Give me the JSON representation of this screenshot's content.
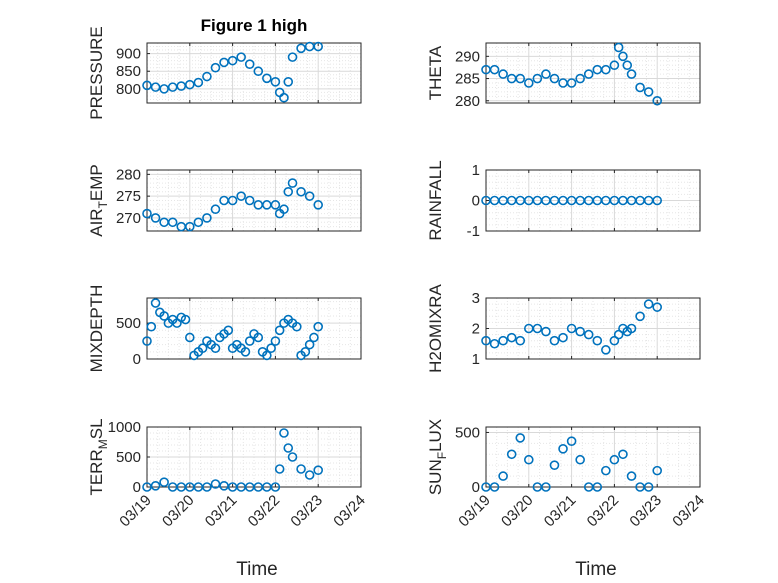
{
  "figure": {
    "title": "Figure 1 high",
    "xlabel": "Time",
    "x_ticks": [
      "03/19",
      "03/20",
      "03/21",
      "03/22",
      "03/23",
      "03/24"
    ],
    "x_range_days": [
      0,
      5
    ],
    "marker_color": "#0072BD"
  },
  "chart_data": [
    {
      "type": "scatter",
      "marker": "circle-open",
      "ylabel": "PRESSURE",
      "ylim": [
        760,
        930
      ],
      "yticks": [
        800,
        850,
        900
      ],
      "grid": true,
      "x": [
        0.0,
        0.2,
        0.4,
        0.6,
        0.8,
        1.0,
        1.2,
        1.4,
        1.6,
        1.8,
        2.0,
        2.2,
        2.4,
        2.6,
        2.8,
        3.0,
        3.1,
        3.2,
        3.3,
        3.4,
        3.6,
        3.8,
        4.0
      ],
      "y": [
        810,
        805,
        800,
        805,
        808,
        812,
        818,
        835,
        860,
        875,
        880,
        890,
        870,
        850,
        830,
        820,
        790,
        775,
        820,
        890,
        915,
        920,
        920
      ]
    },
    {
      "type": "scatter",
      "marker": "circle-open",
      "ylabel": "THETA",
      "ylim": [
        279.5,
        293
      ],
      "yticks": [
        280,
        285,
        290
      ],
      "grid": true,
      "x": [
        0.0,
        0.2,
        0.4,
        0.6,
        0.8,
        1.0,
        1.2,
        1.4,
        1.6,
        1.8,
        2.0,
        2.2,
        2.4,
        2.6,
        2.8,
        3.0,
        3.1,
        3.2,
        3.3,
        3.4,
        3.6,
        3.8,
        4.0
      ],
      "y": [
        287,
        287,
        286,
        285,
        285,
        284,
        285,
        286,
        285,
        284,
        284,
        285,
        286,
        287,
        287,
        288,
        292,
        290,
        288,
        286,
        283,
        282,
        280
      ]
    },
    {
      "type": "scatter",
      "marker": "circle-open",
      "ylabel": "AIR_TEMP",
      "ylabel_sub": "T",
      "ylabel_pre": "AIR",
      "ylabel_post": "EMP",
      "ylim": [
        267,
        281
      ],
      "yticks": [
        270,
        275,
        280
      ],
      "grid": true,
      "x": [
        0.0,
        0.2,
        0.4,
        0.6,
        0.8,
        1.0,
        1.2,
        1.4,
        1.6,
        1.8,
        2.0,
        2.2,
        2.4,
        2.6,
        2.8,
        3.0,
        3.1,
        3.2,
        3.3,
        3.4,
        3.6,
        3.8,
        4.0
      ],
      "y": [
        271,
        270,
        269,
        269,
        268,
        268,
        269,
        270,
        272,
        274,
        274,
        275,
        274,
        273,
        273,
        273,
        271,
        272,
        276,
        278,
        276,
        275,
        273
      ]
    },
    {
      "type": "scatter",
      "marker": "circle-open",
      "ylabel": "RAINFALL",
      "ylim": [
        -1,
        1
      ],
      "yticks": [
        -1,
        0,
        1
      ],
      "grid": true,
      "x": [
        0.0,
        0.2,
        0.4,
        0.6,
        0.8,
        1.0,
        1.2,
        1.4,
        1.6,
        1.8,
        2.0,
        2.2,
        2.4,
        2.6,
        2.8,
        3.0,
        3.2,
        3.4,
        3.6,
        3.8,
        4.0
      ],
      "y": [
        0,
        0,
        0,
        0,
        0,
        0,
        0,
        0,
        0,
        0,
        0,
        0,
        0,
        0,
        0,
        0,
        0,
        0,
        0,
        0,
        0
      ]
    },
    {
      "type": "scatter",
      "marker": "circle-open",
      "ylabel": "MIXDEPTH",
      "ylim": [
        0,
        850
      ],
      "yticks": [
        0,
        500
      ],
      "grid": true,
      "x": [
        0.0,
        0.1,
        0.2,
        0.3,
        0.4,
        0.5,
        0.6,
        0.7,
        0.8,
        0.9,
        1.0,
        1.1,
        1.2,
        1.3,
        1.4,
        1.5,
        1.6,
        1.7,
        1.8,
        1.9,
        2.0,
        2.1,
        2.2,
        2.3,
        2.4,
        2.5,
        2.6,
        2.7,
        2.8,
        2.9,
        3.0,
        3.1,
        3.2,
        3.3,
        3.4,
        3.5,
        3.6,
        3.7,
        3.8,
        3.9,
        4.0
      ],
      "y": [
        250,
        450,
        780,
        650,
        600,
        500,
        550,
        500,
        580,
        550,
        300,
        50,
        100,
        150,
        250,
        200,
        150,
        300,
        350,
        400,
        150,
        200,
        150,
        100,
        250,
        350,
        300,
        100,
        50,
        150,
        250,
        400,
        500,
        550,
        500,
        450,
        50,
        100,
        200,
        300,
        450
      ]
    },
    {
      "type": "scatter",
      "marker": "circle-open",
      "ylabel": "H2OMIXRA",
      "ylim": [
        1,
        3
      ],
      "yticks": [
        1,
        2,
        3
      ],
      "grid": true,
      "x": [
        0.0,
        0.2,
        0.4,
        0.6,
        0.8,
        1.0,
        1.2,
        1.4,
        1.6,
        1.8,
        2.0,
        2.2,
        2.4,
        2.6,
        2.8,
        3.0,
        3.1,
        3.2,
        3.3,
        3.4,
        3.6,
        3.8,
        4.0
      ],
      "y": [
        1.6,
        1.5,
        1.6,
        1.7,
        1.6,
        2.0,
        2.0,
        1.9,
        1.6,
        1.7,
        2.0,
        1.9,
        1.8,
        1.6,
        1.3,
        1.6,
        1.8,
        2.0,
        1.9,
        2.0,
        2.4,
        2.8,
        2.7
      ]
    },
    {
      "type": "scatter",
      "marker": "circle-open",
      "ylabel": "TERR_MSL",
      "ylabel_pre": "TERR",
      "ylabel_sub": "M",
      "ylabel_post": "SL",
      "ylim": [
        0,
        1000
      ],
      "yticks": [
        0,
        500,
        1000
      ],
      "grid": true,
      "x": [
        0.0,
        0.2,
        0.4,
        0.6,
        0.8,
        1.0,
        1.2,
        1.4,
        1.6,
        1.8,
        2.0,
        2.2,
        2.4,
        2.6,
        2.8,
        3.0,
        3.1,
        3.2,
        3.3,
        3.4,
        3.6,
        3.8,
        4.0
      ],
      "y": [
        0,
        20,
        80,
        0,
        0,
        0,
        0,
        0,
        50,
        20,
        0,
        0,
        0,
        0,
        0,
        0,
        300,
        900,
        650,
        500,
        300,
        200,
        280
      ]
    },
    {
      "type": "scatter",
      "marker": "circle-open",
      "ylabel": "SUN_FLUX",
      "ylabel_pre": "SUN",
      "ylabel_sub": "F",
      "ylabel_post": "LUX",
      "ylim": [
        0,
        550
      ],
      "yticks": [
        0,
        500
      ],
      "grid": true,
      "x": [
        0.0,
        0.2,
        0.4,
        0.6,
        0.8,
        1.0,
        1.2,
        1.4,
        1.6,
        1.8,
        2.0,
        2.2,
        2.4,
        2.6,
        2.8,
        3.0,
        3.2,
        3.4,
        3.6,
        3.8,
        4.0
      ],
      "y": [
        0,
        0,
        100,
        300,
        450,
        250,
        0,
        0,
        200,
        350,
        420,
        250,
        0,
        0,
        150,
        250,
        300,
        100,
        0,
        0,
        150
      ]
    }
  ]
}
